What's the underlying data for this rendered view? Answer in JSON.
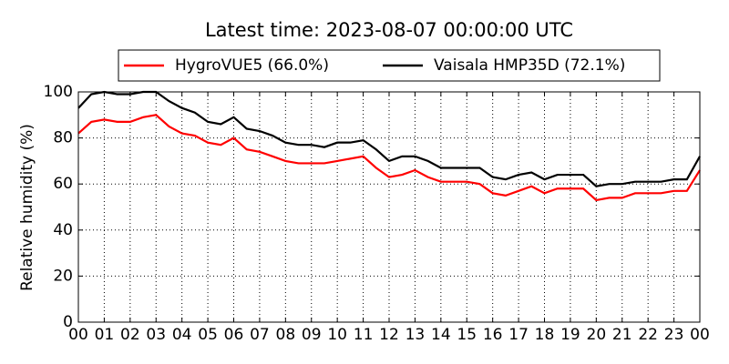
{
  "chart_data": {
    "type": "line",
    "title": "Latest time: 2023-08-07 00:00:00 UTC",
    "ylabel": "Relative humidity (%)",
    "x": [
      0,
      0.5,
      1,
      1.5,
      2,
      2.5,
      3,
      3.5,
      4,
      4.5,
      5,
      5.5,
      6,
      6.5,
      7,
      7.5,
      8,
      8.5,
      9,
      9.5,
      10,
      10.5,
      11,
      11.5,
      12,
      12.5,
      13,
      13.5,
      14,
      14.5,
      15,
      15.5,
      16,
      16.5,
      17,
      17.5,
      18,
      18.5,
      19,
      19.5,
      20,
      20.5,
      21,
      21.5,
      22,
      22.5,
      23,
      23.5,
      24
    ],
    "series": [
      {
        "name": "HygroVUE5 (66.0%)",
        "color": "#ff0000",
        "values": [
          82,
          87,
          88,
          87,
          87,
          89,
          90,
          85,
          82,
          81,
          78,
          77,
          80,
          75,
          74,
          72,
          70,
          69,
          69,
          69,
          70,
          71,
          72,
          67,
          63,
          64,
          66,
          63,
          61,
          61,
          61,
          60,
          56,
          55,
          57,
          59,
          56,
          58,
          58,
          58,
          53,
          54,
          54,
          56,
          56,
          56,
          57,
          57,
          66
        ]
      },
      {
        "name": "Vaisala HMP35D (72.1%)",
        "color": "#000000",
        "values": [
          93,
          99,
          100,
          99,
          99,
          100,
          100,
          96,
          93,
          91,
          87,
          86,
          89,
          84,
          83,
          81,
          78,
          77,
          77,
          76,
          78,
          78,
          79,
          75,
          70,
          72,
          72,
          70,
          67,
          67,
          67,
          67,
          63,
          62,
          64,
          65,
          62,
          64,
          64,
          64,
          59,
          60,
          60,
          61,
          61,
          61,
          62,
          62,
          72
        ]
      }
    ],
    "xlim": [
      0,
      24
    ],
    "xticks": [
      {
        "value": 0,
        "label": "00"
      },
      {
        "value": 1,
        "label": "01"
      },
      {
        "value": 2,
        "label": "02"
      },
      {
        "value": 3,
        "label": "03"
      },
      {
        "value": 4,
        "label": "04"
      },
      {
        "value": 5,
        "label": "05"
      },
      {
        "value": 6,
        "label": "06"
      },
      {
        "value": 7,
        "label": "07"
      },
      {
        "value": 8,
        "label": "08"
      },
      {
        "value": 9,
        "label": "09"
      },
      {
        "value": 10,
        "label": "10"
      },
      {
        "value": 11,
        "label": "11"
      },
      {
        "value": 12,
        "label": "12"
      },
      {
        "value": 13,
        "label": "13"
      },
      {
        "value": 14,
        "label": "14"
      },
      {
        "value": 15,
        "label": "15"
      },
      {
        "value": 16,
        "label": "16"
      },
      {
        "value": 17,
        "label": "17"
      },
      {
        "value": 18,
        "label": "18"
      },
      {
        "value": 19,
        "label": "19"
      },
      {
        "value": 20,
        "label": "20"
      },
      {
        "value": 21,
        "label": "21"
      },
      {
        "value": 22,
        "label": "22"
      },
      {
        "value": 23,
        "label": "23"
      },
      {
        "value": 24,
        "label": "00"
      }
    ],
    "ylim": [
      0,
      100
    ],
    "yticks": [
      0,
      20,
      40,
      60,
      80,
      100
    ],
    "grid": true,
    "legend": "top"
  }
}
